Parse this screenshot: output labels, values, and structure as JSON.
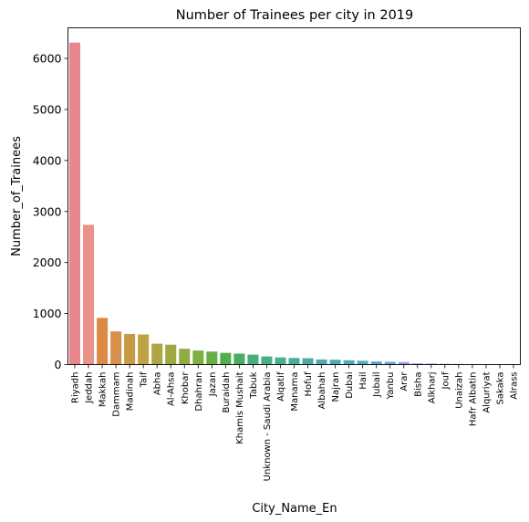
{
  "chart_data": {
    "type": "bar",
    "title": "Number of Trainees per city in 2019",
    "xlabel": "City_Name_En",
    "ylabel": "Number_of_Trainees",
    "ylim": [
      0,
      6600
    ],
    "yticks": [
      0,
      1000,
      2000,
      3000,
      4000,
      5000,
      6000
    ],
    "grid": false,
    "categories": [
      "Riyadh",
      "Jeddah",
      "Makkah",
      "Dammam",
      "Madinah",
      "Taif",
      "Abha",
      "Al-Ahsa",
      "Khobar",
      "Dhahran",
      "Jazan",
      "Buraidah",
      "Khamis Mushait",
      "Tabuk",
      "Unknown - Saudi Arabia",
      "Alqatif",
      "Manama",
      "Hofuf",
      "Albahah",
      "Najran",
      "Dubai",
      "Hail",
      "Jubail",
      "Yanbu",
      "Arar",
      "Bisha",
      "Alkharj",
      "Jouf",
      "Unaizah",
      "Hafr Albatin",
      "Alquriyat",
      "Sakaka",
      "Alrass"
    ],
    "values": [
      6310,
      2740,
      915,
      650,
      600,
      590,
      410,
      390,
      310,
      275,
      255,
      230,
      215,
      195,
      160,
      140,
      130,
      125,
      100,
      95,
      85,
      75,
      60,
      55,
      50,
      25,
      20,
      15,
      12,
      8,
      5,
      3,
      2
    ],
    "colors": [
      "#e8858e",
      "#e8928a",
      "#db8a45",
      "#d7904b",
      "#c89a43",
      "#bfa243",
      "#aea743",
      "#9ea942",
      "#8fac43",
      "#7eaf42",
      "#66b043",
      "#4eb04b",
      "#49ad62",
      "#49ae79",
      "#4aae88",
      "#4baf93",
      "#4bad9c",
      "#4caba6",
      "#4dabae",
      "#4fabb6",
      "#50abbe",
      "#53aac9",
      "#5aa6d4",
      "#6fa3dd",
      "#8e9fe2",
      "#a396e6",
      "#b58ee6",
      "#c883e6",
      "#d97ae2",
      "#e477d8",
      "#e37ccb",
      "#e57fbe",
      "#e682b1"
    ]
  }
}
